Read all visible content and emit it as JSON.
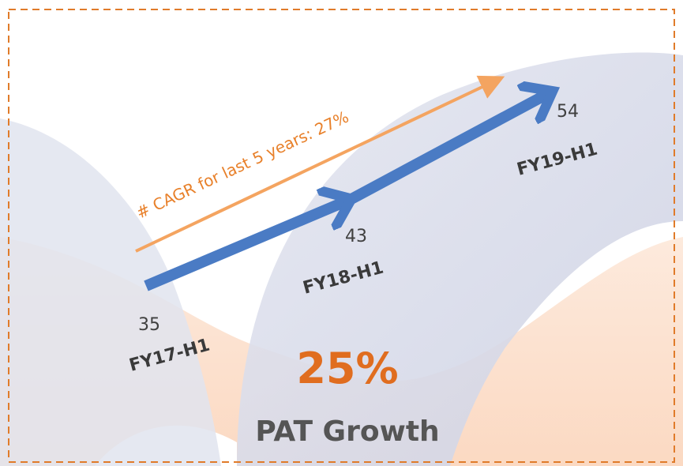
{
  "points": [
    {
      "value": 35,
      "label": "FY17-H1"
    },
    {
      "value": 43,
      "label": "FY18-H1"
    },
    {
      "value": 54,
      "label": "FY19-H1"
    }
  ],
  "annotation": "# CAGR for last 5 years: 27%",
  "headline": {
    "value": "25%",
    "caption": "PAT Growth"
  }
}
